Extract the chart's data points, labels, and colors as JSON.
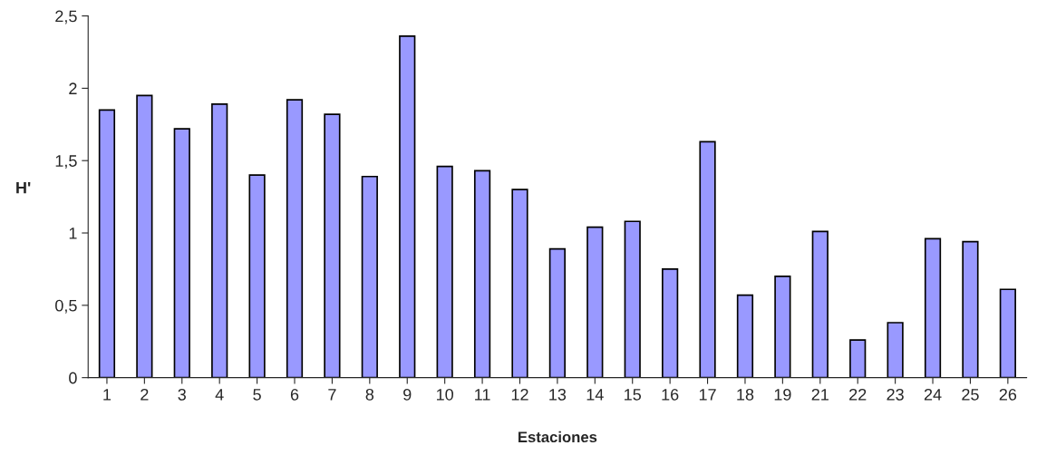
{
  "chart_data": {
    "type": "bar",
    "xlabel": "Estaciones",
    "ylabel": "H'",
    "categories": [
      "1",
      "2",
      "3",
      "4",
      "5",
      "6",
      "7",
      "8",
      "9",
      "10",
      "11",
      "12",
      "13",
      "14",
      "15",
      "16",
      "17",
      "18",
      "19",
      "21",
      "22",
      "23",
      "24",
      "25",
      "26"
    ],
    "values": [
      1.85,
      1.95,
      1.72,
      1.89,
      1.4,
      1.92,
      1.82,
      1.39,
      2.36,
      1.46,
      1.43,
      1.3,
      0.89,
      1.04,
      1.08,
      0.75,
      1.63,
      0.57,
      0.7,
      1.01,
      0.26,
      0.38,
      0.96,
      0.94,
      0.61
    ],
    "color": "#9999ff",
    "ylim": [
      0,
      2.5
    ],
    "yticks": [
      {
        "value": 0,
        "label": "0"
      },
      {
        "value": 0.5,
        "label": "0,5"
      },
      {
        "value": 1,
        "label": "1"
      },
      {
        "value": 1.5,
        "label": "1,5"
      },
      {
        "value": 2,
        "label": "2"
      },
      {
        "value": 2.5,
        "label": "2,5"
      }
    ],
    "grid": false
  }
}
